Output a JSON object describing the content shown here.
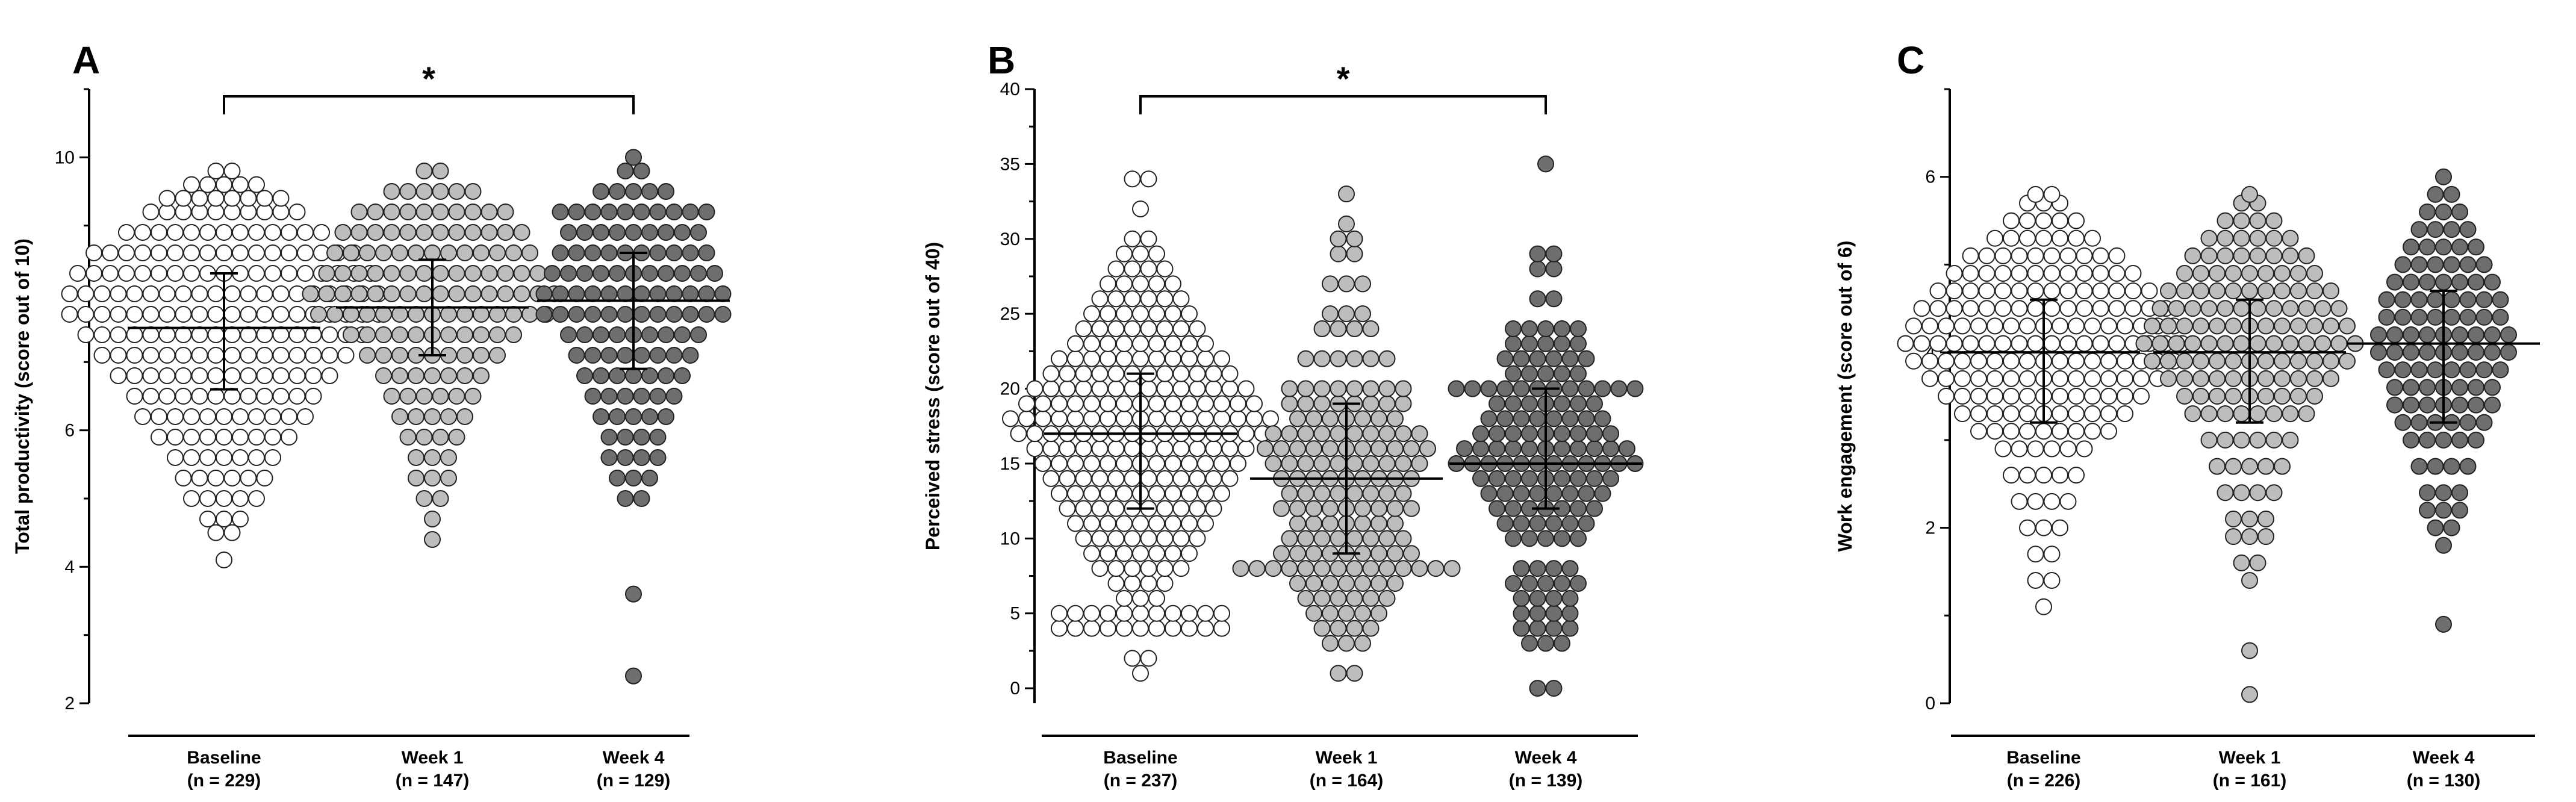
{
  "chart_data": [
    {
      "type": "scatter",
      "panel": "A",
      "ylabel": "Total productivity (score out of 10)",
      "ylim": [
        2,
        11
      ],
      "yticks": [
        2,
        4,
        6,
        8,
        10
      ],
      "categories": [
        "Baseline",
        "Week 1",
        "Week 4"
      ],
      "n_labels": [
        "(n = 229)",
        "(n = 147)",
        "(n = 129)"
      ],
      "series": [
        {
          "n": 229,
          "median": 7.5,
          "q1": 6.6,
          "q3": 8.3,
          "min": 4.1,
          "max": 9.8,
          "fill": "#ffffff",
          "levels": [
            [
              4.1,
              1
            ],
            [
              4.5,
              2
            ],
            [
              4.7,
              3
            ],
            [
              5.0,
              5
            ],
            [
              5.3,
              6
            ],
            [
              5.6,
              7
            ],
            [
              5.9,
              9
            ],
            [
              6.2,
              11
            ],
            [
              6.5,
              12
            ],
            [
              6.8,
              14
            ],
            [
              7.1,
              16
            ],
            [
              7.4,
              18
            ],
            [
              7.7,
              20
            ],
            [
              8.0,
              20
            ],
            [
              8.3,
              19
            ],
            [
              8.6,
              17
            ],
            [
              8.9,
              13
            ],
            [
              9.2,
              10
            ],
            [
              9.4,
              8
            ],
            [
              9.6,
              5
            ],
            [
              9.8,
              2
            ]
          ]
        },
        {
          "n": 147,
          "median": 7.8,
          "q1": 7.1,
          "q3": 8.5,
          "min": 4.4,
          "max": 9.9,
          "fill": "#bdbdbd",
          "levels": [
            [
              4.4,
              1
            ],
            [
              4.7,
              1
            ],
            [
              5.0,
              2
            ],
            [
              5.3,
              3
            ],
            [
              5.6,
              3
            ],
            [
              5.9,
              4
            ],
            [
              6.2,
              5
            ],
            [
              6.5,
              6
            ],
            [
              6.8,
              7
            ],
            [
              7.1,
              9
            ],
            [
              7.4,
              11
            ],
            [
              7.7,
              15
            ],
            [
              8.0,
              16
            ],
            [
              8.3,
              14
            ],
            [
              8.6,
              13
            ],
            [
              8.9,
              12
            ],
            [
              9.2,
              10
            ],
            [
              9.5,
              6
            ],
            [
              9.8,
              2
            ]
          ]
        },
        {
          "n": 129,
          "median": 7.9,
          "q1": 6.9,
          "q3": 8.6,
          "min": 2.4,
          "max": 10.0,
          "fill": "#6e6e6e",
          "levels": [
            [
              2.4,
              1
            ],
            [
              3.6,
              1
            ],
            [
              5.0,
              2
            ],
            [
              5.3,
              3
            ],
            [
              5.6,
              4
            ],
            [
              5.9,
              4
            ],
            [
              6.2,
              5
            ],
            [
              6.5,
              6
            ],
            [
              6.8,
              7
            ],
            [
              7.1,
              8
            ],
            [
              7.4,
              9
            ],
            [
              7.7,
              12
            ],
            [
              8.0,
              12
            ],
            [
              8.3,
              11
            ],
            [
              8.6,
              10
            ],
            [
              8.9,
              9
            ],
            [
              9.2,
              10
            ],
            [
              9.5,
              5
            ],
            [
              9.8,
              2
            ],
            [
              10.0,
              1
            ]
          ]
        }
      ],
      "significance": {
        "from": 0,
        "to": 2,
        "label": "*"
      }
    },
    {
      "type": "scatter",
      "panel": "B",
      "ylabel": "Perceived stress (score out of 40)",
      "ylim": [
        -1,
        40
      ],
      "yticks": [
        0,
        5,
        10,
        15,
        20,
        25,
        30,
        35,
        40
      ],
      "categories": [
        "Baseline",
        "Week 1",
        "Week 4"
      ],
      "n_labels": [
        "(n = 237)",
        "(n = 164)",
        "(n = 139)"
      ],
      "series": [
        {
          "n": 237,
          "median": 17,
          "q1": 12,
          "q3": 21,
          "min": 1,
          "max": 34,
          "fill": "#ffffff",
          "levels": [
            [
              1,
              1
            ],
            [
              2,
              2
            ],
            [
              4,
              11
            ],
            [
              5,
              11
            ],
            [
              6,
              3
            ],
            [
              7,
              4
            ],
            [
              8,
              6
            ],
            [
              9,
              7
            ],
            [
              10,
              8
            ],
            [
              11,
              9
            ],
            [
              12,
              10
            ],
            [
              13,
              11
            ],
            [
              14,
              12
            ],
            [
              15,
              13
            ],
            [
              16,
              14
            ],
            [
              17,
              16
            ],
            [
              18,
              17
            ],
            [
              19,
              15
            ],
            [
              20,
              14
            ],
            [
              21,
              12
            ],
            [
              22,
              11
            ],
            [
              23,
              9
            ],
            [
              24,
              8
            ],
            [
              25,
              7
            ],
            [
              26,
              6
            ],
            [
              27,
              5
            ],
            [
              28,
              4
            ],
            [
              29,
              3
            ],
            [
              30,
              2
            ],
            [
              32,
              1
            ],
            [
              34,
              2
            ]
          ]
        },
        {
          "n": 164,
          "median": 14,
          "q1": 9,
          "q3": 19,
          "min": 1,
          "max": 33,
          "fill": "#bdbdbd",
          "levels": [
            [
              1,
              2
            ],
            [
              3,
              3
            ],
            [
              4,
              4
            ],
            [
              5,
              5
            ],
            [
              6,
              6
            ],
            [
              7,
              7
            ],
            [
              8,
              14
            ],
            [
              9,
              9
            ],
            [
              10,
              8
            ],
            [
              11,
              7
            ],
            [
              12,
              9
            ],
            [
              13,
              8
            ],
            [
              14,
              9
            ],
            [
              15,
              10
            ],
            [
              16,
              11
            ],
            [
              17,
              10
            ],
            [
              18,
              7
            ],
            [
              19,
              8
            ],
            [
              20,
              8
            ],
            [
              22,
              6
            ],
            [
              24,
              4
            ],
            [
              25,
              3
            ],
            [
              27,
              3
            ],
            [
              29,
              2
            ],
            [
              30,
              2
            ],
            [
              31,
              1
            ],
            [
              33,
              1
            ]
          ]
        },
        {
          "n": 139,
          "median": 15,
          "q1": 12,
          "q3": 20,
          "min": 0,
          "max": 35,
          "fill": "#6e6e6e",
          "levels": [
            [
              0,
              2
            ],
            [
              3,
              3
            ],
            [
              4,
              4
            ],
            [
              5,
              4
            ],
            [
              6,
              4
            ],
            [
              7,
              5
            ],
            [
              8,
              4
            ],
            [
              10,
              5
            ],
            [
              11,
              6
            ],
            [
              12,
              7
            ],
            [
              13,
              8
            ],
            [
              14,
              9
            ],
            [
              15,
              12
            ],
            [
              16,
              11
            ],
            [
              17,
              9
            ],
            [
              18,
              8
            ],
            [
              19,
              7
            ],
            [
              20,
              12
            ],
            [
              21,
              5
            ],
            [
              22,
              6
            ],
            [
              23,
              5
            ],
            [
              24,
              5
            ],
            [
              26,
              2
            ],
            [
              28,
              2
            ],
            [
              29,
              2
            ],
            [
              35,
              1
            ]
          ]
        }
      ],
      "significance": {
        "from": 0,
        "to": 2,
        "label": "*"
      }
    },
    {
      "type": "scatter",
      "panel": "C",
      "ylabel": "Work engagement (score out of 6)",
      "ylim": [
        0,
        7
      ],
      "yticks": [
        0,
        2,
        4,
        6
      ],
      "categories": [
        "Baseline",
        "Week 1",
        "Week 4"
      ],
      "n_labels": [
        "(n = 226)",
        "(n = 161)",
        "(n = 130)"
      ],
      "series": [
        {
          "n": 226,
          "median": 4.0,
          "q1": 3.2,
          "q3": 4.6,
          "min": 1.1,
          "max": 5.8,
          "fill": "#ffffff",
          "levels": [
            [
              1.1,
              1
            ],
            [
              1.4,
              2
            ],
            [
              1.7,
              2
            ],
            [
              2.0,
              3
            ],
            [
              2.3,
              4
            ],
            [
              2.6,
              5
            ],
            [
              2.9,
              6
            ],
            [
              3.1,
              9
            ],
            [
              3.3,
              11
            ],
            [
              3.5,
              13
            ],
            [
              3.7,
              15
            ],
            [
              3.9,
              17
            ],
            [
              4.1,
              18
            ],
            [
              4.3,
              17
            ],
            [
              4.5,
              16
            ],
            [
              4.7,
              14
            ],
            [
              4.9,
              12
            ],
            [
              5.1,
              10
            ],
            [
              5.3,
              7
            ],
            [
              5.5,
              5
            ],
            [
              5.7,
              3
            ],
            [
              5.8,
              2
            ]
          ]
        },
        {
          "n": 161,
          "median": 4.0,
          "q1": 3.2,
          "q3": 4.6,
          "min": 0.1,
          "max": 5.8,
          "fill": "#bdbdbd",
          "levels": [
            [
              0.1,
              1
            ],
            [
              0.6,
              1
            ],
            [
              1.4,
              1
            ],
            [
              1.6,
              2
            ],
            [
              1.9,
              3
            ],
            [
              2.1,
              3
            ],
            [
              2.4,
              4
            ],
            [
              2.7,
              5
            ],
            [
              3.0,
              6
            ],
            [
              3.3,
              8
            ],
            [
              3.5,
              9
            ],
            [
              3.7,
              11
            ],
            [
              3.9,
              13
            ],
            [
              4.1,
              14
            ],
            [
              4.3,
              13
            ],
            [
              4.5,
              12
            ],
            [
              4.7,
              11
            ],
            [
              4.9,
              9
            ],
            [
              5.1,
              8
            ],
            [
              5.3,
              6
            ],
            [
              5.5,
              4
            ],
            [
              5.7,
              2
            ],
            [
              5.8,
              1
            ]
          ]
        },
        {
          "n": 130,
          "median": 4.1,
          "q1": 3.2,
          "q3": 4.7,
          "min": 0.9,
          "max": 6.0,
          "fill": "#6e6e6e",
          "levels": [
            [
              0.9,
              1
            ],
            [
              1.8,
              1
            ],
            [
              2.0,
              2
            ],
            [
              2.2,
              3
            ],
            [
              2.4,
              3
            ],
            [
              2.7,
              4
            ],
            [
              3.0,
              5
            ],
            [
              3.2,
              6
            ],
            [
              3.4,
              7
            ],
            [
              3.6,
              7
            ],
            [
              3.8,
              8
            ],
            [
              4.0,
              9
            ],
            [
              4.2,
              9
            ],
            [
              4.4,
              8
            ],
            [
              4.6,
              8
            ],
            [
              4.8,
              7
            ],
            [
              5.0,
              6
            ],
            [
              5.2,
              5
            ],
            [
              5.4,
              4
            ],
            [
              5.6,
              3
            ],
            [
              5.8,
              2
            ],
            [
              6.0,
              1
            ]
          ]
        }
      ]
    }
  ]
}
